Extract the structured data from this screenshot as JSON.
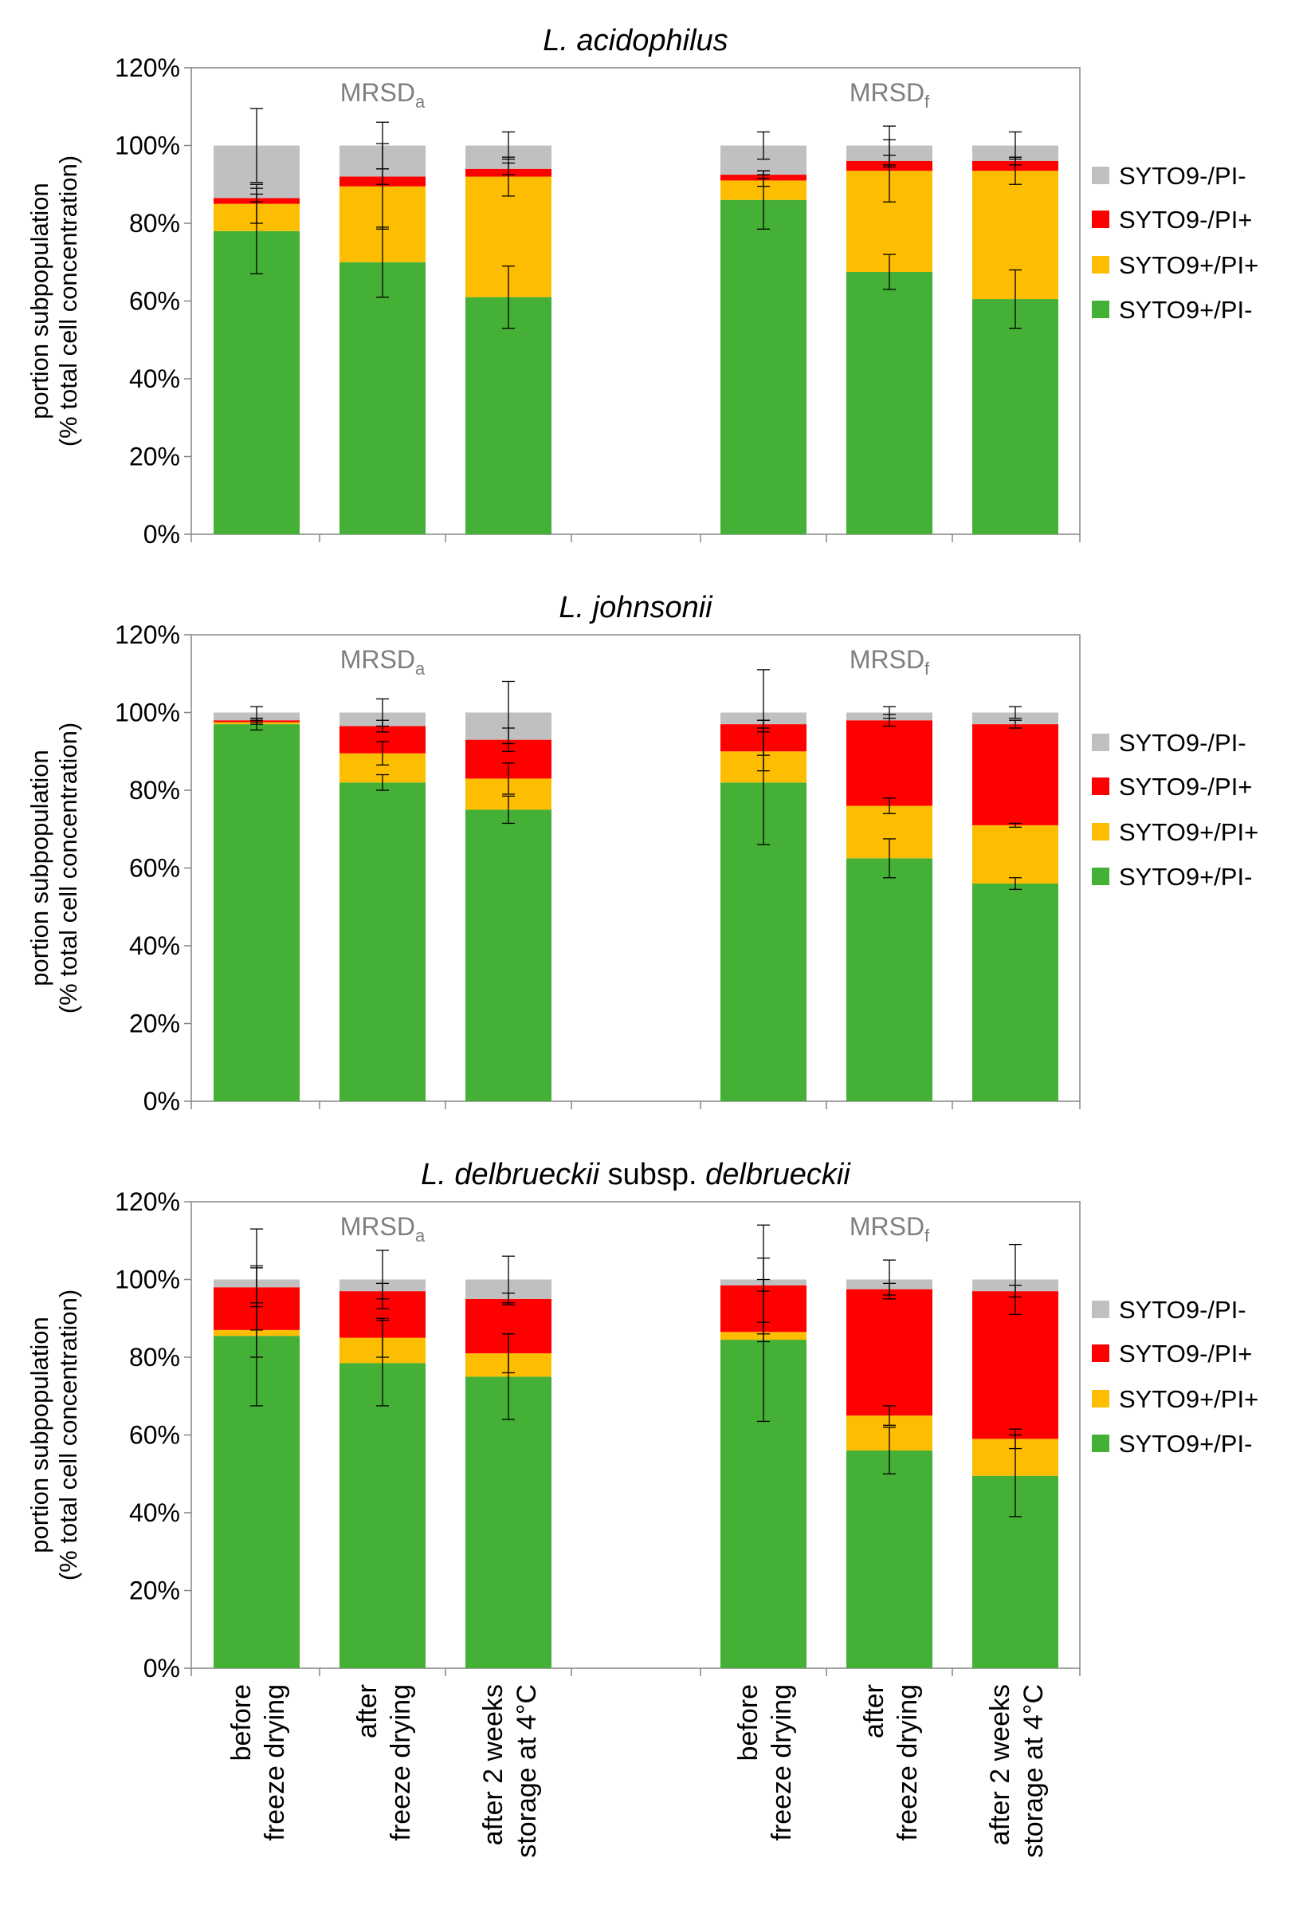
{
  "chart_data": [
    {
      "type": "bar",
      "stacked": true,
      "title": "L. acidophilus",
      "title_parts": [
        {
          "text": "L. acidophilus",
          "italic": true
        }
      ],
      "ylabel_line1": "portion subpopulation",
      "ylabel_line2": "(% total cell concentration)",
      "ylim": [
        0,
        120
      ],
      "yticks": [
        "0%",
        "20%",
        "40%",
        "60%",
        "80%",
        "100%",
        "120%"
      ],
      "yticks_values": [
        0,
        20,
        40,
        60,
        80,
        100,
        120
      ],
      "group_labels": [
        {
          "main": "MRSD",
          "sub": "a"
        },
        {
          "main": "MRSD",
          "sub": "f"
        }
      ],
      "categories": [
        "before freeze drying",
        "after freeze drying",
        "after 2 weeks storage at 4°C",
        "before freeze drying",
        "after freeze drying",
        "after 2 weeks storage at 4°C"
      ],
      "legend": [
        "SYTO9-/PI-",
        "SYTO9-/PI+",
        "SYTO9+/PI+",
        "SYTO9+/PI-"
      ],
      "series": [
        {
          "name": "SYTO9+/PI-",
          "color": "#44b035",
          "values": [
            78,
            70,
            61,
            86,
            67.5,
            60.5
          ],
          "errors": [
            11,
            9,
            8,
            7.5,
            4.5,
            7.5
          ]
        },
        {
          "name": "SYTO9+/PI+",
          "color": "#fdbd00",
          "values": [
            7,
            19.5,
            31,
            5,
            26,
            33
          ],
          "errors": [
            5,
            11,
            5,
            1.5,
            8,
            3.5
          ]
        },
        {
          "name": "SYTO9-/PI+",
          "color": "#ff0000",
          "values": [
            1.5,
            2.5,
            2,
            1.5,
            2.5,
            2.5
          ],
          "errors": [
            1,
            2,
            1.5,
            1,
            1.5,
            1
          ]
        },
        {
          "name": "SYTO9-/PI-",
          "color": "#c0c0c0",
          "values": [
            13.5,
            8,
            6,
            7.5,
            4,
            4
          ],
          "errors": [
            9.5,
            6,
            3.5,
            3.5,
            5,
            3.5
          ]
        }
      ]
    },
    {
      "type": "bar",
      "stacked": true,
      "title": "L. johnsonii",
      "title_parts": [
        {
          "text": "L. johnsonii",
          "italic": true
        }
      ],
      "ylabel_line1": "portion subpopulation",
      "ylabel_line2": "(% total cell concentration)",
      "ylim": [
        0,
        120
      ],
      "yticks": [
        "0%",
        "20%",
        "40%",
        "60%",
        "80%",
        "100%",
        "120%"
      ],
      "yticks_values": [
        0,
        20,
        40,
        60,
        80,
        100,
        120
      ],
      "group_labels": [
        {
          "main": "MRSD",
          "sub": "a"
        },
        {
          "main": "MRSD",
          "sub": "f"
        }
      ],
      "categories": [
        "before freeze drying",
        "after freeze drying",
        "after 2 weeks storage at 4°C",
        "before freeze drying",
        "after freeze drying",
        "after 2 weeks storage at 4°C"
      ],
      "legend": [
        "SYTO9-/PI-",
        "SYTO9-/PI+",
        "SYTO9+/PI+",
        "SYTO9+/PI-"
      ],
      "series": [
        {
          "name": "SYTO9+/PI-",
          "color": "#44b035",
          "values": [
            97,
            82,
            75,
            82,
            62.5,
            56
          ],
          "errors": [
            1.5,
            2,
            3.5,
            16,
            5,
            1.5
          ]
        },
        {
          "name": "SYTO9+/PI+",
          "color": "#fdbd00",
          "values": [
            0.5,
            7.5,
            8,
            8,
            13.5,
            15
          ],
          "errors": [
            0.5,
            3,
            4,
            5,
            2,
            0.5
          ]
        },
        {
          "name": "SYTO9-/PI+",
          "color": "#ff0000",
          "values": [
            0.5,
            7,
            10,
            7,
            22,
            26
          ],
          "errors": [
            0.5,
            1.5,
            3,
            1,
            1.5,
            1
          ]
        },
        {
          "name": "SYTO9-/PI-",
          "color": "#c0c0c0",
          "values": [
            2,
            3.5,
            7,
            3,
            2,
            3
          ],
          "errors": [
            1.5,
            3.5,
            8,
            11,
            1.5,
            1.5
          ]
        }
      ]
    },
    {
      "type": "bar",
      "stacked": true,
      "title": "L. delbrueckii subsp. delbrueckii",
      "title_parts": [
        {
          "text": "L. delbrueckii",
          "italic": true
        },
        {
          "text": " subsp. ",
          "italic": false
        },
        {
          "text": "delbrueckii",
          "italic": true
        }
      ],
      "ylabel_line1": "portion subpopulation",
      "ylabel_line2": "(% total cell concentration)",
      "ylim": [
        0,
        120
      ],
      "yticks": [
        "0%",
        "20%",
        "40%",
        "60%",
        "80%",
        "100%",
        "120%"
      ],
      "yticks_values": [
        0,
        20,
        40,
        60,
        80,
        100,
        120
      ],
      "group_labels": [
        {
          "main": "MRSD",
          "sub": "a"
        },
        {
          "main": "MRSD",
          "sub": "f"
        }
      ],
      "categories": [
        "before freeze drying",
        "after freeze drying",
        "after 2 weeks storage at 4°C",
        "before freeze drying",
        "after freeze drying",
        "after 2 weeks storage at 4°C"
      ],
      "legend": [
        "SYTO9-/PI-",
        "SYTO9-/PI+",
        "SYTO9+/PI+",
        "SYTO9+/PI-"
      ],
      "series": [
        {
          "name": "SYTO9+/PI-",
          "color": "#44b035",
          "values": [
            85.5,
            78.5,
            75,
            84.5,
            56,
            49.5
          ],
          "errors": [
            18,
            11,
            11,
            21,
            6,
            10.5
          ]
        },
        {
          "name": "SYTO9+/PI+",
          "color": "#fdbd00",
          "values": [
            1.5,
            6.5,
            6,
            2,
            9,
            9.5
          ],
          "errors": [
            7,
            5,
            5,
            2.5,
            2.5,
            2.5
          ]
        },
        {
          "name": "SYTO9-/PI+",
          "color": "#ff0000",
          "values": [
            11,
            12,
            14,
            12,
            32.5,
            38
          ],
          "errors": [
            5,
            2,
            1.5,
            1.5,
            1.5,
            1.5
          ]
        },
        {
          "name": "SYTO9-/PI-",
          "color": "#c0c0c0",
          "values": [
            2,
            3,
            5,
            1.5,
            2.5,
            3
          ],
          "errors": [
            13,
            7.5,
            6,
            14,
            5,
            9
          ]
        }
      ]
    }
  ],
  "colors": {
    "axis": "#868686",
    "group_label": "#7f7f7f",
    "text": "#000000"
  }
}
